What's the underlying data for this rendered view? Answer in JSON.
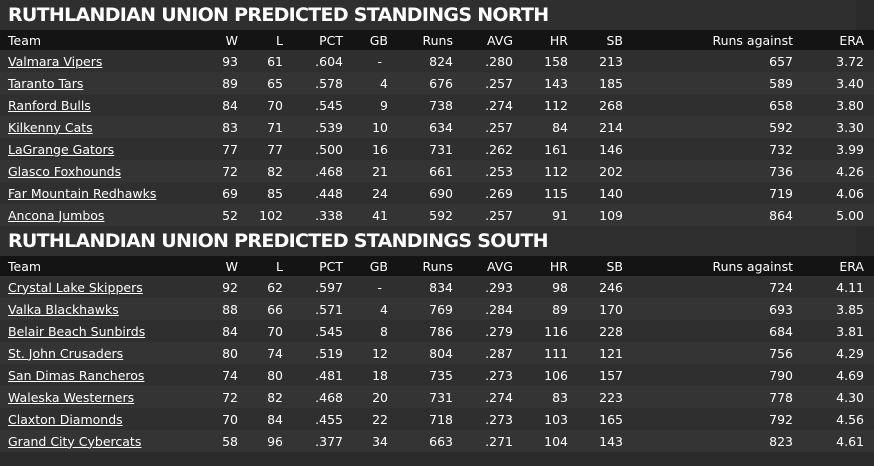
{
  "columns": {
    "team": "Team",
    "w": "W",
    "l": "L",
    "pct": "PCT",
    "gb": "GB",
    "runs": "Runs",
    "avg": "AVG",
    "hr": "HR",
    "sb": "SB",
    "runs_against": "Runs against",
    "era": "ERA"
  },
  "north": {
    "title": "RUTHLANDIAN UNION PREDICTED STANDINGS NORTH",
    "rows": [
      {
        "team": "Valmara Vipers",
        "w": "93",
        "l": "61",
        "pct": ".604",
        "gb": "-",
        "runs": "824",
        "avg": ".280",
        "hr": "158",
        "sb": "213",
        "ra": "657",
        "era": "3.72"
      },
      {
        "team": "Taranto Tars",
        "w": "89",
        "l": "65",
        "pct": ".578",
        "gb": "4",
        "runs": "676",
        "avg": ".257",
        "hr": "143",
        "sb": "185",
        "ra": "589",
        "era": "3.40"
      },
      {
        "team": "Ranford Bulls",
        "w": "84",
        "l": "70",
        "pct": ".545",
        "gb": "9",
        "runs": "738",
        "avg": ".274",
        "hr": "112",
        "sb": "268",
        "ra": "658",
        "era": "3.80"
      },
      {
        "team": "Kilkenny Cats",
        "w": "83",
        "l": "71",
        "pct": ".539",
        "gb": "10",
        "runs": "634",
        "avg": ".257",
        "hr": "84",
        "sb": "214",
        "ra": "592",
        "era": "3.30"
      },
      {
        "team": "LaGrange Gators",
        "w": "77",
        "l": "77",
        "pct": ".500",
        "gb": "16",
        "runs": "731",
        "avg": ".262",
        "hr": "161",
        "sb": "146",
        "ra": "732",
        "era": "3.99"
      },
      {
        "team": "Glasco Foxhounds",
        "w": "72",
        "l": "82",
        "pct": ".468",
        "gb": "21",
        "runs": "661",
        "avg": ".253",
        "hr": "112",
        "sb": "202",
        "ra": "736",
        "era": "4.26"
      },
      {
        "team": "Far Mountain Redhawks",
        "w": "69",
        "l": "85",
        "pct": ".448",
        "gb": "24",
        "runs": "690",
        "avg": ".269",
        "hr": "115",
        "sb": "140",
        "ra": "719",
        "era": "4.06"
      },
      {
        "team": "Ancona Jumbos",
        "w": "52",
        "l": "102",
        "pct": ".338",
        "gb": "41",
        "runs": "592",
        "avg": ".257",
        "hr": "91",
        "sb": "109",
        "ra": "864",
        "era": "5.00"
      }
    ]
  },
  "south": {
    "title": "RUTHLANDIAN UNION PREDICTED STANDINGS SOUTH",
    "rows": [
      {
        "team": "Crystal Lake Skippers",
        "w": "92",
        "l": "62",
        "pct": ".597",
        "gb": "-",
        "runs": "834",
        "avg": ".293",
        "hr": "98",
        "sb": "246",
        "ra": "724",
        "era": "4.11"
      },
      {
        "team": "Valka Blackhawks",
        "w": "88",
        "l": "66",
        "pct": ".571",
        "gb": "4",
        "runs": "769",
        "avg": ".284",
        "hr": "89",
        "sb": "170",
        "ra": "693",
        "era": "3.85"
      },
      {
        "team": "Belair Beach Sunbirds",
        "w": "84",
        "l": "70",
        "pct": ".545",
        "gb": "8",
        "runs": "786",
        "avg": ".279",
        "hr": "116",
        "sb": "228",
        "ra": "684",
        "era": "3.81"
      },
      {
        "team": "St. John Crusaders",
        "w": "80",
        "l": "74",
        "pct": ".519",
        "gb": "12",
        "runs": "804",
        "avg": ".287",
        "hr": "111",
        "sb": "121",
        "ra": "756",
        "era": "4.29"
      },
      {
        "team": "San Dimas Rancheros",
        "w": "74",
        "l": "80",
        "pct": ".481",
        "gb": "18",
        "runs": "735",
        "avg": ".273",
        "hr": "106",
        "sb": "157",
        "ra": "790",
        "era": "4.69"
      },
      {
        "team": "Waleska Westerners",
        "w": "72",
        "l": "82",
        "pct": ".468",
        "gb": "20",
        "runs": "731",
        "avg": ".274",
        "hr": "83",
        "sb": "223",
        "ra": "778",
        "era": "4.30"
      },
      {
        "team": "Claxton Diamonds",
        "w": "70",
        "l": "84",
        "pct": ".455",
        "gb": "22",
        "runs": "718",
        "avg": ".273",
        "hr": "103",
        "sb": "165",
        "ra": "792",
        "era": "4.56"
      },
      {
        "team": "Grand City Cybercats",
        "w": "58",
        "l": "96",
        "pct": ".377",
        "gb": "34",
        "runs": "663",
        "avg": ".271",
        "hr": "104",
        "sb": "143",
        "ra": "823",
        "era": "4.61"
      }
    ]
  }
}
